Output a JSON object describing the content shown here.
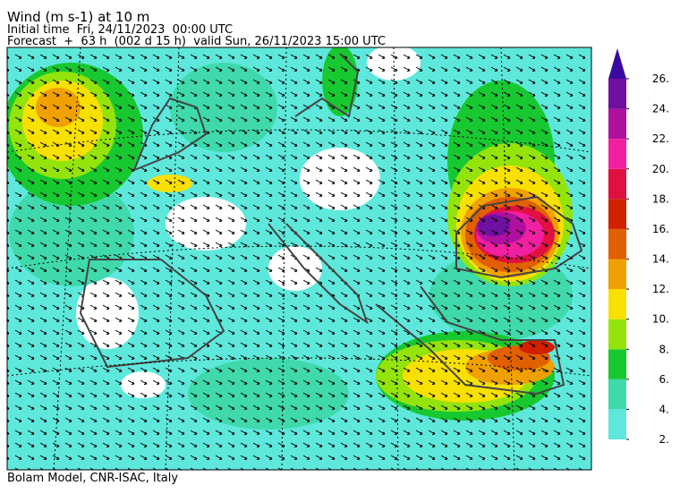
{
  "header": {
    "title": "Wind (m s-1) at 10 m",
    "initial_time": "Initial time  Fri, 24/11/2023  00:00 UTC",
    "forecast": "Forecast  +  63 h  (002 d 15 h)  valid Sun, 26/11/2023 15:00 UTC"
  },
  "footer": "Bolam Model, CNR-ISAC, Italy",
  "colorbar": {
    "ticks": [
      {
        "value": 2,
        "label": "2."
      },
      {
        "value": 4,
        "label": "4."
      },
      {
        "value": 6,
        "label": "6."
      },
      {
        "value": 8,
        "label": "8."
      },
      {
        "value": 10,
        "label": "10."
      },
      {
        "value": 12,
        "label": "12."
      },
      {
        "value": 14,
        "label": "14."
      },
      {
        "value": 16,
        "label": "16."
      },
      {
        "value": 18,
        "label": "18."
      },
      {
        "value": 20,
        "label": "20."
      },
      {
        "value": 22,
        "label": "22."
      },
      {
        "value": 24,
        "label": "24."
      },
      {
        "value": 26,
        "label": "26."
      }
    ],
    "colors": [
      "#5ee8dc",
      "#3fd9ac",
      "#18c830",
      "#94e40c",
      "#f8e000",
      "#f0a000",
      "#e06000",
      "#d02000",
      "#e01040",
      "#f020a0",
      "#b010a0",
      "#7010a0"
    ],
    "extend_color": "#3a0aa0"
  }
}
